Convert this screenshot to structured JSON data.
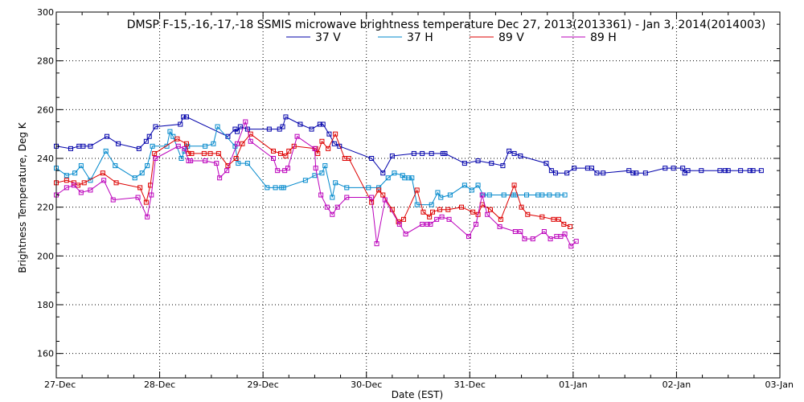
{
  "chart_data": {
    "type": "line",
    "title": "DMSP F-15,-16,-17,-18 SSMIS microwave brightness temperature Dec 27, 2013(2013361) - Jan  3, 2014(2014003)",
    "xlabel": "Date (EST)",
    "ylabel": "Brightness Temperature, Deg K",
    "xlim": [
      0,
      7
    ],
    "ylim": [
      150,
      300
    ],
    "y_ticks": [
      150,
      160,
      180,
      200,
      220,
      240,
      260,
      280,
      300
    ],
    "y_tick_labels": [
      "",
      "160",
      "180",
      "200",
      "220",
      "240",
      "260",
      "280",
      "300"
    ],
    "x_ticks": [
      0,
      1,
      2,
      3,
      4,
      5,
      6,
      7
    ],
    "x_tick_labels": [
      "27-Dec",
      "28-Dec",
      "29-Dec",
      "30-Dec",
      "31-Dec",
      "01-Jan",
      "02-Jan",
      "03-Jan"
    ],
    "grid": true,
    "legend_position": "top",
    "series": [
      {
        "name": "37 V",
        "color": "#0000aa",
        "x": [
          0,
          0.14,
          0.22,
          0.26,
          0.33,
          0.49,
          0.6,
          0.8,
          0.87,
          0.9,
          0.96,
          1.2,
          1.23,
          1.26,
          1.66,
          1.73,
          1.75,
          1.78,
          1.85,
          2.06,
          2.16,
          2.19,
          2.22,
          2.36,
          2.47,
          2.55,
          2.58,
          2.64,
          2.69,
          2.74,
          3.05,
          3.16,
          3.25,
          3.46,
          3.54,
          3.63,
          3.74,
          3.76,
          3.95,
          4.08,
          4.21,
          4.32,
          4.38,
          4.43,
          4.49,
          4.74,
          4.79,
          4.83,
          4.94,
          5.01,
          5.14,
          5.18,
          5.23,
          5.29,
          5.54,
          5.58,
          5.61,
          5.7,
          5.89,
          5.97,
          6.06,
          6.08,
          6.11,
          6.24,
          6.42,
          6.47,
          6.5,
          6.62,
          6.71,
          6.74,
          6.82
        ],
        "values": [
          245,
          244,
          245,
          245,
          245,
          249,
          246,
          244,
          247,
          249,
          253,
          254,
          257,
          257,
          249,
          252,
          251,
          253,
          252,
          252,
          252,
          253,
          257,
          254,
          252,
          254,
          254,
          250,
          246,
          245,
          240,
          234,
          241,
          242,
          242,
          242,
          242,
          242,
          238,
          239,
          238,
          237,
          243,
          242,
          241,
          238,
          235,
          234,
          234,
          236,
          236,
          236,
          234,
          234,
          235,
          234,
          234,
          234,
          236,
          236,
          236,
          234,
          235,
          235,
          235,
          235,
          235,
          235,
          235,
          235,
          235
        ]
      },
      {
        "name": "37 H",
        "color": "#0088cc",
        "x": [
          0,
          0.1,
          0.18,
          0.24,
          0.33,
          0.48,
          0.57,
          0.76,
          0.83,
          0.88,
          0.93,
          1.07,
          1.1,
          1.13,
          1.21,
          1.24,
          1.27,
          1.44,
          1.52,
          1.56,
          1.73,
          1.76,
          1.85,
          2.04,
          2.12,
          2.18,
          2.2,
          2.41,
          2.5,
          2.57,
          2.6,
          2.67,
          2.7,
          2.81,
          3.02,
          3.12,
          3.21,
          3.27,
          3.35,
          3.37,
          3.41,
          3.44,
          3.49,
          3.63,
          3.69,
          3.72,
          3.81,
          3.95,
          4.02,
          4.08,
          4.13,
          4.19,
          4.33,
          4.42,
          4.44,
          4.55,
          4.66,
          4.7,
          4.77,
          4.85,
          4.92
        ],
        "values": [
          236,
          233,
          234,
          237,
          231,
          243,
          237,
          232,
          234,
          237,
          245,
          245,
          251,
          249,
          240,
          243,
          245,
          245,
          246,
          253,
          245,
          238,
          238,
          228,
          228,
          228,
          228,
          231,
          233,
          234,
          237,
          224,
          230,
          228,
          228,
          228,
          232,
          234,
          233,
          232,
          232,
          232,
          221,
          221,
          226,
          224,
          225,
          229,
          227,
          229,
          225,
          225,
          225,
          225,
          225,
          225,
          225,
          225,
          225,
          225,
          225
        ]
      },
      {
        "name": "89 V",
        "color": "#dd0000",
        "x": [
          0,
          0.1,
          0.17,
          0.21,
          0.27,
          0.45,
          0.58,
          0.81,
          0.87,
          0.91,
          0.95,
          1.17,
          1.26,
          1.28,
          1.31,
          1.43,
          1.49,
          1.57,
          1.66,
          1.74,
          1.8,
          1.88,
          2.1,
          2.17,
          2.22,
          2.25,
          2.3,
          2.51,
          2.53,
          2.57,
          2.63,
          2.7,
          2.79,
          2.83,
          3.05,
          3.12,
          3.16,
          3.25,
          3.31,
          3.36,
          3.49,
          3.55,
          3.61,
          3.64,
          3.71,
          3.79,
          3.92,
          4.03,
          4.08,
          4.12,
          4.2,
          4.3,
          4.43,
          4.5,
          4.56,
          4.7,
          4.81,
          4.86,
          4.91,
          4.97
        ],
        "values": [
          230,
          231,
          230,
          229,
          230,
          234,
          230,
          228,
          222,
          229,
          242,
          248,
          246,
          242,
          242,
          242,
          242,
          242,
          237,
          240,
          246,
          250,
          243,
          242,
          241,
          243,
          245,
          244,
          242,
          247,
          244,
          250,
          240,
          240,
          222,
          227,
          225,
          219,
          214,
          215,
          227,
          218,
          216,
          218,
          219,
          219,
          220,
          218,
          217,
          221,
          219,
          215,
          229,
          220,
          217,
          216,
          215,
          215,
          213,
          212
        ]
      },
      {
        "name": "89 H",
        "color": "#bb00bb",
        "x": [
          0,
          0.1,
          0.17,
          0.24,
          0.33,
          0.46,
          0.55,
          0.79,
          0.88,
          0.92,
          0.96,
          1.18,
          1.24,
          1.28,
          1.3,
          1.44,
          1.55,
          1.58,
          1.65,
          1.75,
          1.83,
          1.88,
          2.1,
          2.14,
          2.21,
          2.24,
          2.33,
          2.5,
          2.51,
          2.56,
          2.62,
          2.67,
          2.72,
          2.81,
          3.05,
          3.1,
          3.18,
          3.32,
          3.38,
          3.54,
          3.59,
          3.62,
          3.68,
          3.73,
          3.8,
          3.99,
          4.06,
          4.12,
          4.17,
          4.29,
          4.44,
          4.49,
          4.53,
          4.61,
          4.72,
          4.78,
          4.84,
          4.88,
          4.92,
          4.98,
          5.03
        ],
        "values": [
          225,
          228,
          229,
          226,
          227,
          231,
          223,
          224,
          216,
          225,
          240,
          245,
          244,
          239,
          239,
          239,
          238,
          232,
          235,
          246,
          255,
          247,
          240,
          235,
          235,
          236,
          249,
          244,
          236,
          225,
          220,
          217,
          220,
          224,
          224,
          205,
          223,
          213,
          209,
          213,
          213,
          213,
          215,
          216,
          215,
          208,
          213,
          225,
          217,
          212,
          210,
          210,
          207,
          207,
          210,
          207,
          208,
          208,
          209,
          204,
          206
        ]
      }
    ]
  }
}
